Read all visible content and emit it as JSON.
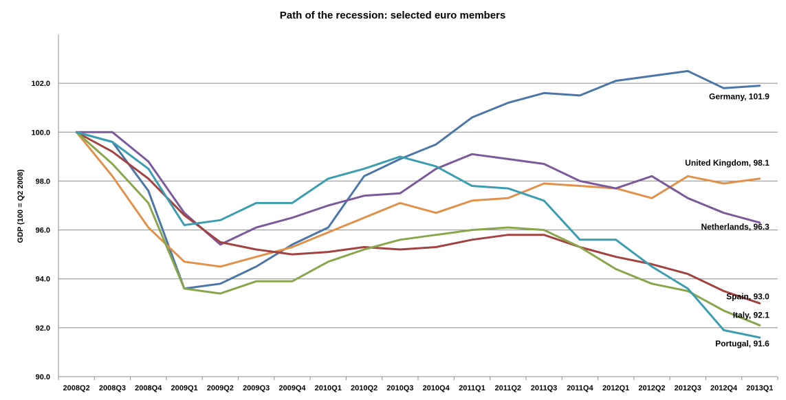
{
  "chart_data": {
    "type": "line",
    "title": "Path of the recession: selected euro members",
    "xlabel": "",
    "ylabel": "GDP (100 = Q2 2008)",
    "ylim": [
      90,
      104
    ],
    "yticks": [
      "90.0",
      "92.0",
      "94.0",
      "96.0",
      "98.0",
      "100.0",
      "102.0"
    ],
    "grid": true,
    "legend": "none",
    "categories": [
      "2008Q2",
      "2008Q3",
      "2008Q4",
      "2009Q1",
      "2009Q2",
      "2009Q3",
      "2009Q4",
      "2010Q1",
      "2010Q2",
      "2010Q3",
      "2010Q4",
      "2011Q1",
      "2011Q2",
      "2011Q3",
      "2011Q4",
      "2012Q1",
      "2012Q2",
      "2012Q3",
      "2012Q4",
      "2013Q1"
    ],
    "series": [
      {
        "name": "Germany",
        "color": "#4a76a8",
        "label": "Germany, 101.9",
        "values": [
          100.0,
          99.6,
          97.6,
          93.6,
          93.8,
          94.5,
          95.4,
          96.1,
          98.2,
          98.9,
          99.5,
          100.6,
          101.2,
          101.6,
          101.5,
          102.1,
          102.3,
          102.5,
          101.8,
          101.9
        ]
      },
      {
        "name": "United Kingdom",
        "color": "#e0914a",
        "label": "United Kingdom, 98.1",
        "values": [
          100.0,
          98.2,
          96.1,
          94.7,
          94.5,
          94.9,
          95.3,
          95.9,
          96.5,
          97.1,
          96.7,
          97.2,
          97.3,
          97.9,
          97.8,
          97.7,
          97.3,
          98.2,
          97.9,
          98.1
        ]
      },
      {
        "name": "Netherlands",
        "color": "#7b5a9c",
        "label": "Netherlands, 96.3",
        "values": [
          100.0,
          100.0,
          98.8,
          96.7,
          95.4,
          96.1,
          96.5,
          97.0,
          97.4,
          97.5,
          98.5,
          99.1,
          98.9,
          98.7,
          98.0,
          97.7,
          98.2,
          97.3,
          96.7,
          96.3
        ]
      },
      {
        "name": "Spain",
        "color": "#a34341",
        "label": "Spain, 93.0",
        "values": [
          100.0,
          99.2,
          98.1,
          96.6,
          95.5,
          95.2,
          95.0,
          95.1,
          95.3,
          95.2,
          95.3,
          95.6,
          95.8,
          95.8,
          95.3,
          94.9,
          94.6,
          94.2,
          93.5,
          93.0
        ]
      },
      {
        "name": "Italy",
        "color": "#8aa64a",
        "label": "Italy, 92.1",
        "values": [
          100.0,
          98.7,
          97.1,
          93.6,
          93.4,
          93.9,
          93.9,
          94.7,
          95.2,
          95.6,
          95.8,
          96.0,
          96.1,
          96.0,
          95.3,
          94.4,
          93.8,
          93.5,
          92.7,
          92.1
        ]
      },
      {
        "name": "Portugal",
        "color": "#3a9eb0",
        "label": "Portugal, 91.6",
        "values": [
          100.0,
          99.6,
          98.5,
          96.2,
          96.4,
          97.1,
          97.1,
          98.1,
          98.5,
          99.0,
          98.6,
          97.8,
          97.7,
          97.2,
          95.6,
          95.6,
          94.5,
          93.6,
          91.9,
          91.6
        ]
      }
    ]
  }
}
